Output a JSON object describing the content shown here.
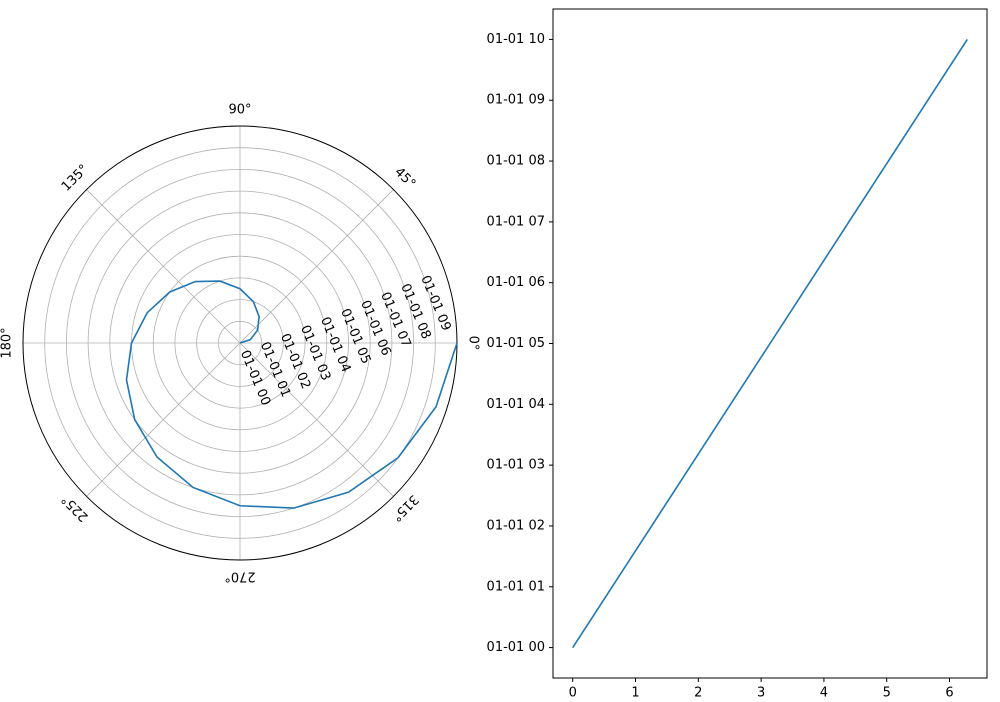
{
  "chart_data": [
    {
      "type": "polar",
      "x": [
        0,
        18,
        36,
        54,
        72,
        90,
        108,
        126,
        144,
        162,
        180,
        198,
        216,
        234,
        252,
        270,
        288,
        306,
        324,
        342,
        360
      ],
      "values": [
        0,
        0.5,
        1,
        1.5,
        2,
        2.5,
        3,
        3.5,
        4,
        4.5,
        5,
        5.5,
        6,
        6.5,
        7,
        7.5,
        8,
        8.5,
        9,
        9.5,
        10
      ],
      "color": "#1f77b4",
      "xticks": [
        {
          "value": 0,
          "label": "0°"
        },
        {
          "value": 45,
          "label": "45°"
        },
        {
          "value": 90,
          "label": "90°"
        },
        {
          "value": 135,
          "label": "135°"
        },
        {
          "value": 180,
          "label": "180°"
        },
        {
          "value": 225,
          "label": "225°"
        },
        {
          "value": 270,
          "label": "270°"
        },
        {
          "value": 315,
          "label": "315°"
        }
      ],
      "ylim": [
        0,
        10
      ],
      "yticks": [
        {
          "value": 0,
          "label": "01-01 00"
        },
        {
          "value": 1,
          "label": "01-01 01"
        },
        {
          "value": 2,
          "label": "01-01 02"
        },
        {
          "value": 3,
          "label": "01-01 03"
        },
        {
          "value": 4,
          "label": "01-01 04"
        },
        {
          "value": 5,
          "label": "01-01 05"
        },
        {
          "value": 6,
          "label": "01-01 06"
        },
        {
          "value": 7,
          "label": "01-01 07"
        },
        {
          "value": 8,
          "label": "01-01 08"
        },
        {
          "value": 9,
          "label": "01-01 09"
        }
      ],
      "grid": true
    },
    {
      "type": "line",
      "x": [
        0,
        0.628,
        1.257,
        1.885,
        2.513,
        3.142,
        3.77,
        4.398,
        5.027,
        5.655,
        6.283
      ],
      "values": [
        0,
        1,
        2,
        3,
        4,
        5,
        6,
        7,
        8,
        9,
        10
      ],
      "color": "#1f77b4",
      "xlim": [
        -0.314,
        6.597
      ],
      "xticks": [
        0,
        1,
        2,
        3,
        4,
        5,
        6
      ],
      "ylim": [
        -0.5,
        10.5
      ],
      "yticks": [
        {
          "value": 0,
          "label": "01-01 00"
        },
        {
          "value": 1,
          "label": "01-01 01"
        },
        {
          "value": 2,
          "label": "01-01 02"
        },
        {
          "value": 3,
          "label": "01-01 03"
        },
        {
          "value": 4,
          "label": "01-01 04"
        },
        {
          "value": 5,
          "label": "01-01 05"
        },
        {
          "value": 6,
          "label": "01-01 06"
        },
        {
          "value": 7,
          "label": "01-01 07"
        },
        {
          "value": 8,
          "label": "01-01 08"
        },
        {
          "value": 9,
          "label": "01-01 09"
        },
        {
          "value": 10,
          "label": "01-01 10"
        }
      ],
      "grid": false
    }
  ]
}
